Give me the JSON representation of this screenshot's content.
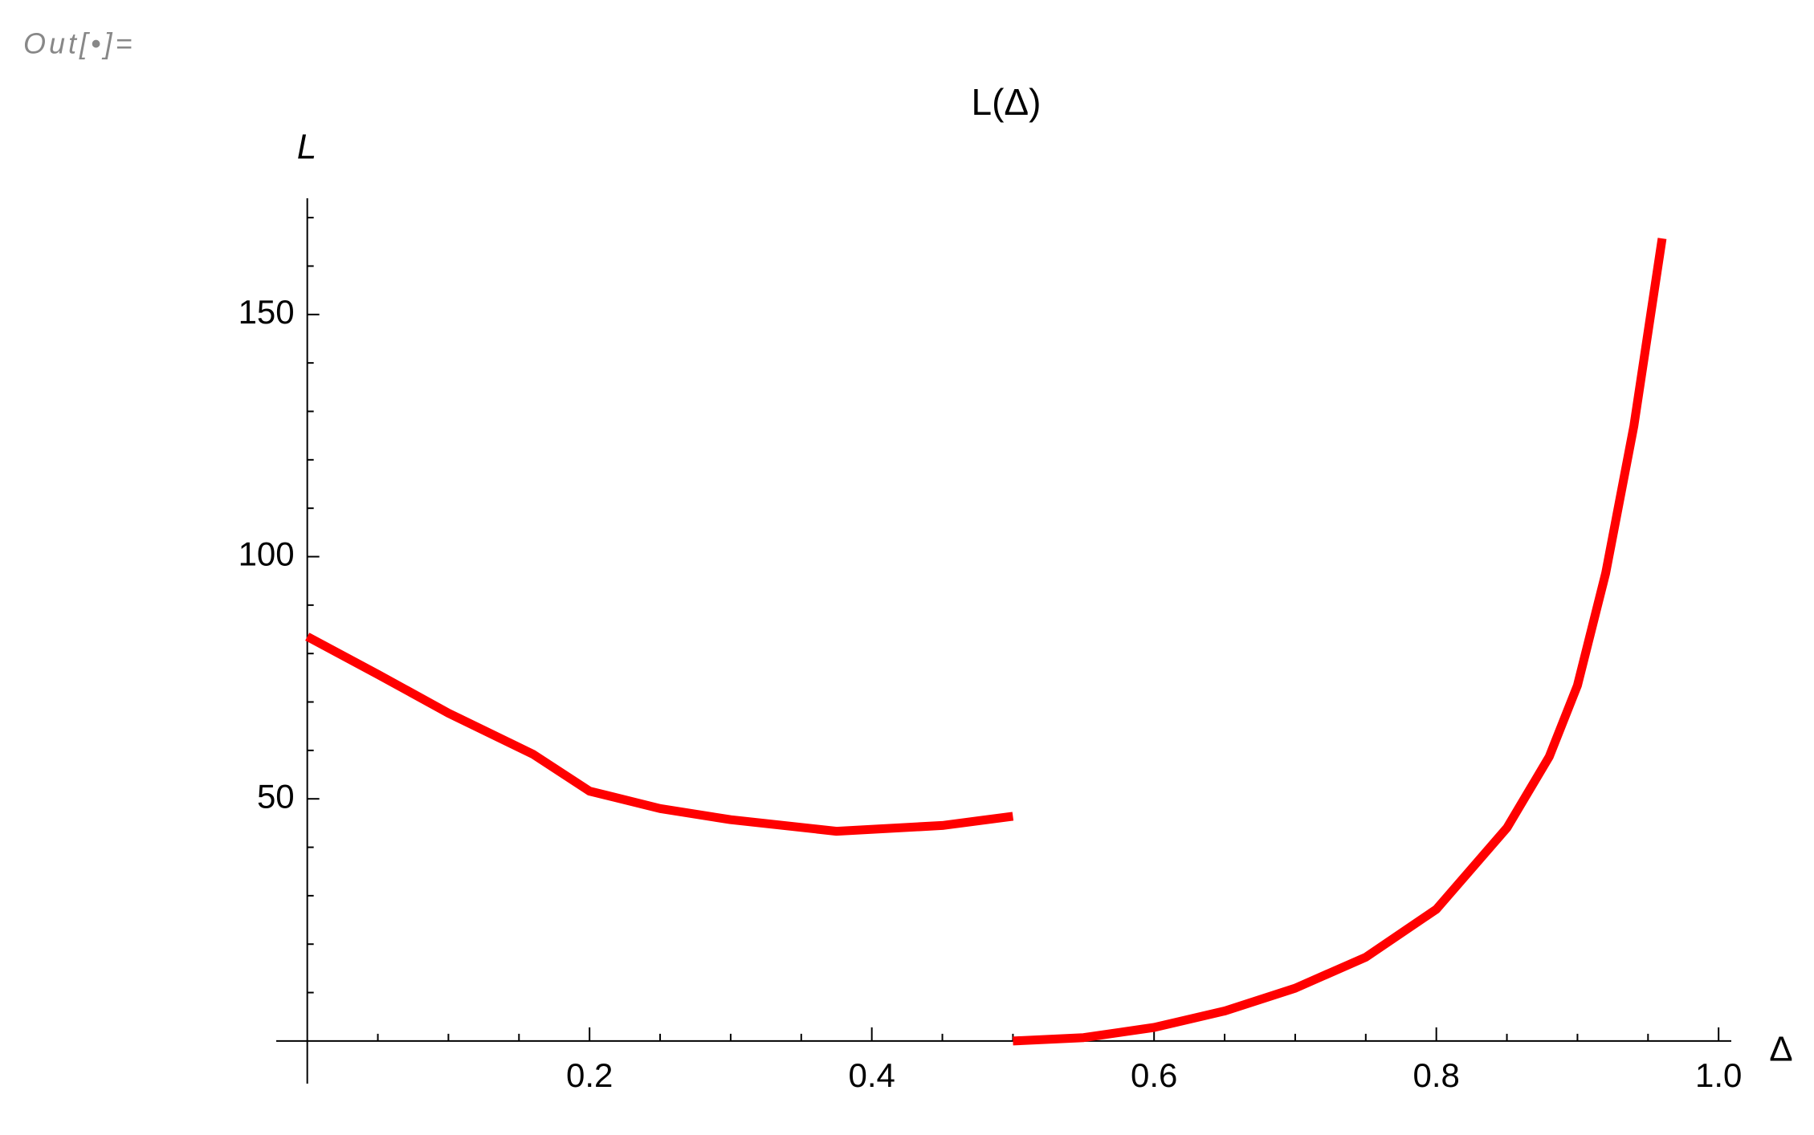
{
  "cell_label": "Out[•]=",
  "chart_data": {
    "type": "line",
    "title": "L(Δ)",
    "xlabel": "Δ",
    "ylabel": "L",
    "series": [
      {
        "color": "#ff0000",
        "x": [
          0,
          0.05,
          0.1,
          0.16,
          0.2,
          0.25,
          0.3,
          0.375,
          0.45,
          0.5
        ],
        "values": [
          83.5,
          75.7,
          67.7,
          59.2,
          51.6,
          48,
          45.7,
          43.3,
          44.5,
          46.4
        ]
      },
      {
        "color": "#ff0000",
        "x": [
          0.5,
          0.55,
          0.6,
          0.65,
          0.7,
          0.75,
          0.8,
          0.85,
          0.88,
          0.9,
          0.92,
          0.94,
          0.96
        ],
        "values": [
          0,
          0.7,
          2.8,
          6.2,
          10.9,
          17.3,
          27.2,
          44,
          58.7,
          73.4,
          96.6,
          127,
          165.7
        ]
      }
    ],
    "xlim": [
      -0.022,
      1.009
    ],
    "ylim": [
      -8.8,
      174
    ],
    "xticks": [
      0.2,
      0.4,
      0.6,
      0.8,
      {
        "value": 1,
        "label": "1.0"
      }
    ],
    "yticks": [
      50,
      100,
      150
    ],
    "xminorticks": [
      0.05,
      0.1,
      0.15,
      0.25,
      0.3,
      0.35,
      0.45,
      0.5,
      0.55,
      0.65,
      0.7,
      0.75,
      0.85,
      0.9,
      0.95
    ],
    "yminorticks": [
      10,
      20,
      30,
      40,
      60,
      70,
      80,
      90,
      110,
      120,
      130,
      140,
      160,
      170
    ]
  }
}
